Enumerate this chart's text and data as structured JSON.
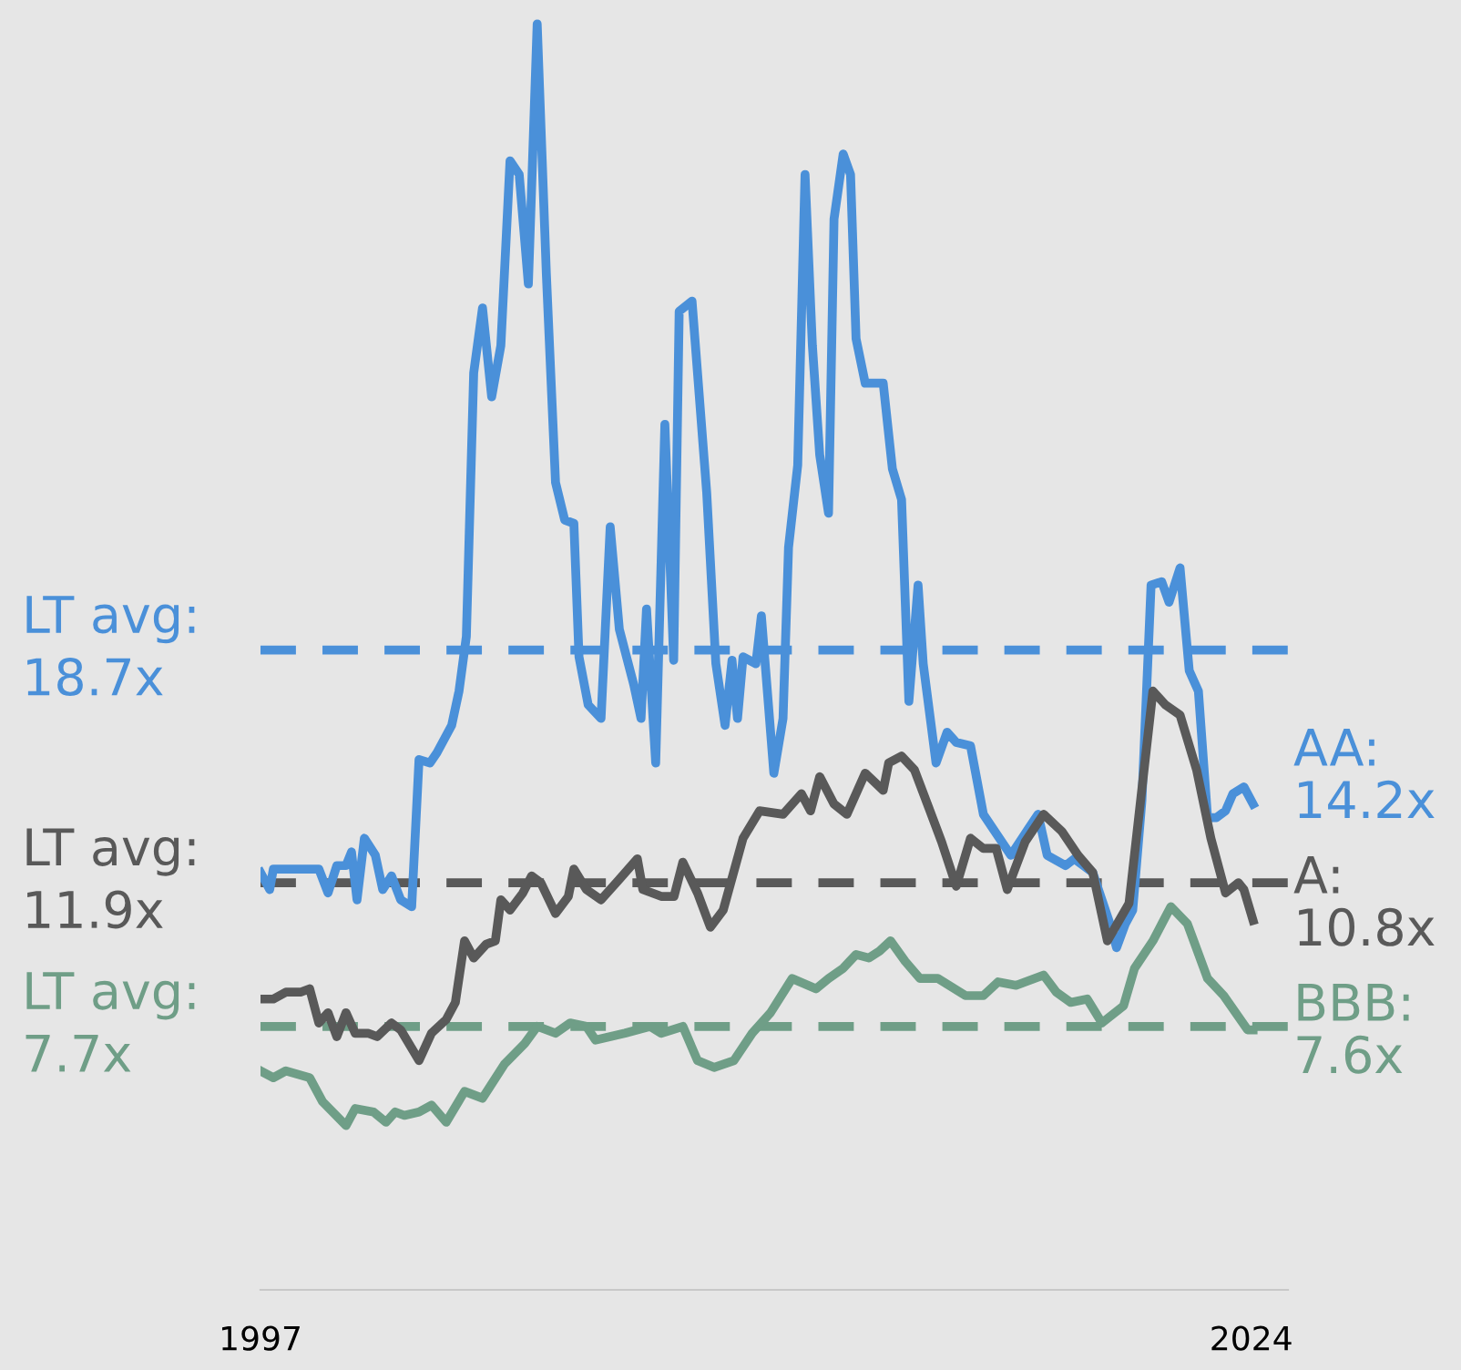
{
  "chart_data": {
    "type": "line",
    "xlim": [
      1997,
      2025
    ],
    "xticks": [
      1997,
      2024
    ],
    "ylim": [
      0,
      37.7
    ],
    "tick_labels": "x",
    "grid": false,
    "legend": false,
    "line_style": "solid",
    "marker": "none",
    "series": [
      {
        "name": "AA:",
        "color": "#4a90d9",
        "x": [
          1997.0,
          1997.25,
          1997.35,
          1998.59,
          1998.84,
          1999.08,
          1999.33,
          1999.48,
          1999.63,
          1999.83,
          2000.13,
          2000.33,
          2000.57,
          2000.82,
          2001.12,
          2001.32,
          2001.62,
          2001.81,
          2002.21,
          2002.41,
          2002.61,
          2002.81,
          2003.05,
          2003.3,
          2003.55,
          2003.8,
          2004.05,
          2004.3,
          2004.54,
          2004.79,
          2005.04,
          2005.29,
          2005.54,
          2005.68,
          2005.93,
          2006.28,
          2006.53,
          2006.78,
          2007.17,
          2007.37,
          2007.52,
          2007.77,
          2008.02,
          2008.26,
          2008.41,
          2008.76,
          2009.16,
          2009.41,
          2009.66,
          2009.85,
          2010.0,
          2010.15,
          2010.5,
          2010.65,
          2010.99,
          2011.24,
          2011.39,
          2011.64,
          2011.84,
          2012.04,
          2012.24,
          2012.48,
          2012.63,
          2012.88,
          2013.08,
          2013.23,
          2013.48,
          2013.97,
          2014.22,
          2014.47,
          2014.67,
          2014.92,
          2015.06,
          2015.41,
          2015.71,
          2015.96,
          2016.35,
          2016.7,
          2017.45,
          2017.94,
          2018.19,
          2018.44,
          2018.94,
          2019.18,
          2019.68,
          2019.93,
          2020.18,
          2020.33,
          2020.57,
          2020.77,
          2021.02,
          2021.27,
          2021.56,
          2021.76,
          2022.06,
          2022.31,
          2022.56,
          2022.81,
          2023.05,
          2023.3,
          2023.5,
          2023.8,
          2024.05
        ],
        "values": [
          12.2,
          11.7,
          12.3,
          12.3,
          11.6,
          12.4,
          12.4,
          12.8,
          11.4,
          13.2,
          12.7,
          11.7,
          12.1,
          11.4,
          11.2,
          15.5,
          15.4,
          15.7,
          16.5,
          17.5,
          19.1,
          26.8,
          28.7,
          26.1,
          27.6,
          33.0,
          32.6,
          29.4,
          37.0,
          29.7,
          23.6,
          22.5,
          22.4,
          18.5,
          17.1,
          16.7,
          22.3,
          19.3,
          17.7,
          16.7,
          19.9,
          15.4,
          25.3,
          18.4,
          28.6,
          28.9,
          23.3,
          18.3,
          16.5,
          18.4,
          16.7,
          18.5,
          18.3,
          19.7,
          15.1,
          16.7,
          21.7,
          24.1,
          32.6,
          27.6,
          24.4,
          22.7,
          31.3,
          33.2,
          32.6,
          27.8,
          26.5,
          26.5,
          24.0,
          23.1,
          17.2,
          20.6,
          18.3,
          15.4,
          16.3,
          16.0,
          15.9,
          13.9,
          12.7,
          13.5,
          13.9,
          12.7,
          12.4,
          12.6,
          12.2,
          11.4,
          10.6,
          10.0,
          10.7,
          11.1,
          14.3,
          20.6,
          20.7,
          20.1,
          21.1,
          18.1,
          17.5,
          13.8,
          13.8,
          14.0,
          14.5,
          14.7,
          14.2
        ],
        "value_labels": [
          null,
          null,
          null,
          null,
          null,
          null,
          null,
          null,
          null,
          null,
          null,
          null,
          null,
          null,
          null,
          null,
          null,
          null,
          null,
          null,
          null,
          null,
          null,
          null,
          null,
          null,
          null,
          null,
          null,
          null,
          null,
          null,
          null,
          null,
          null,
          null,
          null,
          null,
          null,
          null,
          null,
          null,
          null,
          null,
          null,
          null,
          null,
          null,
          null,
          null,
          null,
          null,
          null,
          null,
          null,
          null,
          null,
          null,
          null,
          null,
          null,
          null,
          null,
          null,
          null,
          null,
          null,
          null,
          null,
          null,
          null,
          null,
          null,
          null,
          null,
          null,
          null,
          null,
          null,
          null,
          null,
          null,
          null,
          null,
          null,
          null,
          null,
          null,
          null,
          null,
          null,
          null,
          null,
          null,
          null,
          null,
          null,
          null,
          null,
          null,
          null,
          null,
          "14.2x"
        ]
      },
      {
        "name": "A:",
        "color": "#595959",
        "x": [
          1997.0,
          1997.35,
          1997.69,
          1998.09,
          1998.34,
          1998.59,
          1998.84,
          1999.08,
          1999.33,
          1999.58,
          1999.93,
          2000.18,
          2000.57,
          2000.82,
          2001.32,
          2001.66,
          2002.06,
          2002.31,
          2002.56,
          2002.81,
          2003.15,
          2003.4,
          2003.55,
          2003.8,
          2004.15,
          2004.39,
          2004.64,
          2005.04,
          2005.39,
          2005.54,
          2005.88,
          2006.28,
          2006.78,
          2007.27,
          2007.42,
          2007.92,
          2008.27,
          2008.51,
          2008.91,
          2009.26,
          2009.61,
          2010.15,
          2010.6,
          2011.24,
          2011.74,
          2011.99,
          2012.24,
          2012.63,
          2012.98,
          2013.48,
          2013.97,
          2014.12,
          2014.47,
          2014.82,
          2015.21,
          2015.56,
          2015.96,
          2016.35,
          2016.7,
          2017.05,
          2017.35,
          2017.84,
          2018.34,
          2018.84,
          2019.28,
          2019.68,
          2020.08,
          2020.67,
          2021.32,
          2021.66,
          2022.06,
          2022.51,
          2022.9,
          2023.3,
          2023.65,
          2023.8,
          2024.05
        ],
        "values": [
          8.5,
          8.5,
          8.7,
          8.7,
          8.8,
          7.8,
          8.1,
          7.4,
          8.1,
          7.5,
          7.5,
          7.4,
          7.8,
          7.6,
          6.7,
          7.5,
          7.9,
          8.4,
          10.2,
          9.7,
          10.1,
          10.2,
          11.4,
          11.1,
          11.6,
          12.1,
          11.9,
          11.0,
          11.5,
          12.3,
          11.7,
          11.4,
          12.0,
          12.6,
          11.7,
          11.5,
          11.5,
          12.5,
          11.6,
          10.6,
          11.1,
          13.2,
          14.0,
          13.9,
          14.5,
          14.0,
          15.0,
          14.2,
          13.9,
          15.1,
          14.6,
          15.4,
          15.6,
          15.2,
          14.1,
          13.1,
          11.8,
          13.2,
          12.9,
          12.9,
          11.7,
          13.1,
          13.9,
          13.4,
          12.7,
          12.2,
          10.2,
          11.3,
          17.5,
          17.1,
          16.8,
          15.2,
          13.2,
          11.6,
          11.9,
          11.7,
          10.8
        ],
        "value_labels": [
          null,
          null,
          null,
          null,
          null,
          null,
          null,
          null,
          null,
          null,
          null,
          null,
          null,
          null,
          null,
          null,
          null,
          null,
          null,
          null,
          null,
          null,
          null,
          null,
          null,
          null,
          null,
          null,
          null,
          null,
          null,
          null,
          null,
          null,
          null,
          null,
          null,
          null,
          null,
          null,
          null,
          null,
          null,
          null,
          null,
          null,
          null,
          null,
          null,
          null,
          null,
          null,
          null,
          null,
          null,
          null,
          null,
          null,
          null,
          null,
          null,
          null,
          null,
          null,
          null,
          null,
          null,
          null,
          null,
          null,
          null,
          null,
          null,
          null,
          null,
          null,
          "10.8x"
        ]
      },
      {
        "name": "BBB:",
        "color": "#6f9e87",
        "x": [
          1997.0,
          1997.35,
          1997.69,
          1998.34,
          1998.69,
          1999.33,
          1999.58,
          2000.08,
          2000.42,
          2000.67,
          2000.92,
          2001.32,
          2001.66,
          2002.06,
          2002.56,
          2003.05,
          2003.65,
          2004.2,
          2004.54,
          2005.04,
          2005.44,
          2005.88,
          2006.13,
          2006.93,
          2007.62,
          2007.92,
          2008.51,
          2008.91,
          2009.36,
          2009.9,
          2010.4,
          2010.9,
          2011.49,
          2012.14,
          2012.48,
          2012.88,
          2013.23,
          2013.58,
          2013.87,
          2014.17,
          2014.57,
          2014.97,
          2015.46,
          2016.21,
          2016.7,
          2017.1,
          2017.59,
          2018.34,
          2018.69,
          2019.08,
          2019.53,
          2019.93,
          2020.52,
          2020.82,
          2021.32,
          2021.81,
          2022.26,
          2022.81,
          2023.25,
          2023.9,
          2024.05
        ],
        "values": [
          6.4,
          6.2,
          6.4,
          6.2,
          5.5,
          4.8,
          5.3,
          5.2,
          4.9,
          5.2,
          5.1,
          5.2,
          5.4,
          4.9,
          5.8,
          5.6,
          6.6,
          7.2,
          7.7,
          7.5,
          7.8,
          7.7,
          7.3,
          7.5,
          7.7,
          7.5,
          7.7,
          6.7,
          6.5,
          6.7,
          7.5,
          8.1,
          9.1,
          8.8,
          9.1,
          9.4,
          9.8,
          9.7,
          9.9,
          10.2,
          9.6,
          9.1,
          9.1,
          8.6,
          8.6,
          9.0,
          8.9,
          9.2,
          8.7,
          8.4,
          8.5,
          7.8,
          8.3,
          9.4,
          10.2,
          11.2,
          10.7,
          9.1,
          8.6,
          7.6,
          7.6
        ],
        "value_labels": [
          null,
          null,
          null,
          null,
          null,
          null,
          null,
          null,
          null,
          null,
          null,
          null,
          null,
          null,
          null,
          null,
          null,
          null,
          null,
          null,
          null,
          null,
          null,
          null,
          null,
          null,
          null,
          null,
          null,
          null,
          null,
          null,
          null,
          null,
          null,
          null,
          null,
          null,
          null,
          null,
          null,
          null,
          null,
          null,
          null,
          null,
          null,
          null,
          null,
          null,
          null,
          null,
          null,
          null,
          null,
          null,
          null,
          null,
          null,
          null,
          "7.6x"
        ]
      }
    ],
    "ref_lines": [
      {
        "axis": "y",
        "value": 18.7,
        "label": "LT avg:\n18.7x",
        "color": "#4a90d9",
        "line_style": "dashed"
      },
      {
        "axis": "y",
        "value": 11.9,
        "label": "LT avg:\n11.9x",
        "color": "#595959",
        "line_style": "dashed"
      },
      {
        "axis": "y",
        "value": 7.7,
        "label": "LT avg:\n7.7x",
        "color": "#6f9e87",
        "line_style": "dashed"
      }
    ]
  }
}
